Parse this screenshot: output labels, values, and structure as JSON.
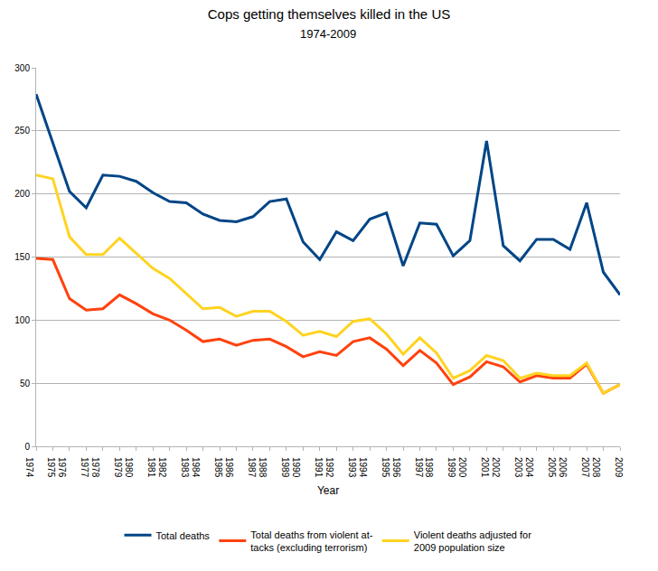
{
  "chart_data": {
    "type": "line",
    "title": "Cops getting themselves killed in the US",
    "subtitle": "1974-2009",
    "xlabel": "Year",
    "x": [
      1974,
      1975,
      1976,
      1977,
      1978,
      1979,
      1980,
      1981,
      1982,
      1983,
      1984,
      1985,
      1986,
      1987,
      1988,
      1989,
      1990,
      1991,
      1992,
      1993,
      1994,
      1995,
      1996,
      1997,
      1998,
      1999,
      2000,
      2001,
      2002,
      2003,
      2004,
      2005,
      2006,
      2007,
      2008,
      2009
    ],
    "series": [
      {
        "name": "Total deaths",
        "color": "#004586",
        "values": [
          279,
          240,
          202,
          189,
          215,
          214,
          210,
          201,
          194,
          193,
          184,
          179,
          178,
          182,
          194,
          196,
          162,
          148,
          170,
          163,
          180,
          185,
          143,
          177,
          176,
          151,
          163,
          242,
          159,
          147,
          164,
          164,
          156,
          193,
          138,
          120
        ]
      },
      {
        "name": "Total deaths from violent at-\ntacks (excluding terrorism)",
        "color": "#ff420e",
        "values": [
          149,
          148,
          117,
          108,
          109,
          120,
          113,
          105,
          100,
          92,
          83,
          85,
          80,
          84,
          85,
          79,
          71,
          75,
          72,
          83,
          86,
          77,
          64,
          76,
          66,
          49,
          55,
          67,
          63,
          51,
          56,
          54,
          54,
          65,
          42,
          49
        ]
      },
      {
        "name": "Violent deaths adjusted for\n2009 population size",
        "color": "#ffd320",
        "values": [
          215,
          212,
          166,
          152,
          152,
          165,
          153,
          141,
          133,
          121,
          109,
          110,
          103,
          107,
          107,
          99,
          88,
          91,
          87,
          99,
          101,
          89,
          73,
          86,
          74,
          54,
          60,
          72,
          68,
          54,
          58,
          56,
          56,
          66,
          42,
          49
        ]
      }
    ],
    "xlim": [
      1974,
      2009
    ],
    "xticks": [
      1974,
      1975,
      1976,
      1977,
      1978,
      1979,
      1980,
      1981,
      1982,
      1983,
      1984,
      1985,
      1986,
      1987,
      1988,
      1989,
      1990,
      1991,
      1992,
      1993,
      1994,
      1995,
      1996,
      1997,
      1998,
      1999,
      2000,
      2001,
      2002,
      2003,
      2004,
      2005,
      2006,
      2007,
      2008,
      2009
    ],
    "ylim": [
      0,
      300
    ],
    "yticks": [
      0,
      50,
      100,
      150,
      200,
      250,
      300
    ],
    "grid": true,
    "legend": "bottom"
  }
}
